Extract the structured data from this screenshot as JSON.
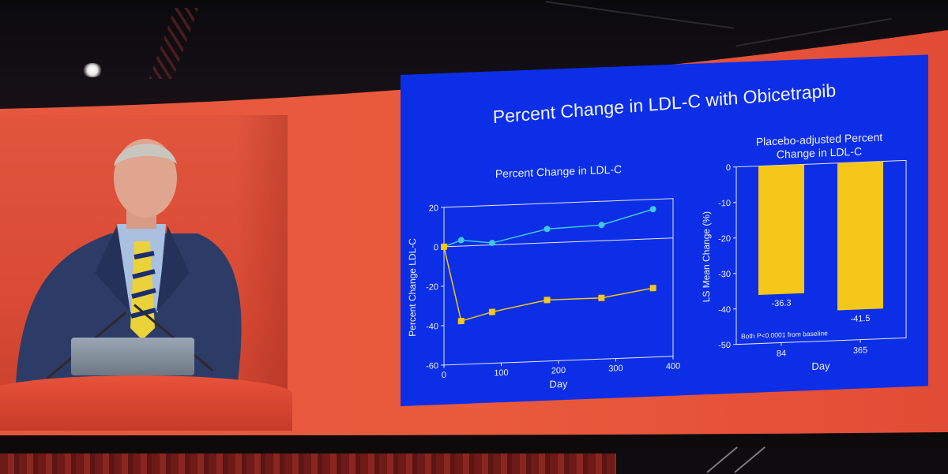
{
  "slide": {
    "title": "Percent Change in LDL-C with Obicetrapib",
    "left_panel_title": "Percent Change in LDL-C",
    "right_panel_title_line1": "Placebo-adjusted Percent",
    "right_panel_title_line2": "Change in LDL-C"
  },
  "colors": {
    "slide_bg": "#0b2ee6",
    "screen_red": "#e2553c",
    "line_series_a": "#3cc8e6",
    "line_series_b": "#f5c71a",
    "bar_fill": "#f5c71a"
  },
  "chart_data": [
    {
      "type": "line",
      "title": "Percent Change in LDL-C",
      "xlabel": "Day",
      "ylabel": "Percent Change LDL-C",
      "xlim": [
        0,
        400
      ],
      "ylim": [
        -60,
        20
      ],
      "x_ticks": [
        "0",
        "100",
        "200",
        "300",
        "400"
      ],
      "y_ticks": [
        "20",
        "0",
        "-20",
        "-40",
        "-60"
      ],
      "series": [
        {
          "x": [
            0,
            30,
            84,
            180,
            275,
            365
          ],
          "y": [
            0,
            3,
            1,
            7,
            8,
            15
          ],
          "color": "#3cc8e6",
          "marker": "circle"
        },
        {
          "x": [
            0,
            30,
            84,
            180,
            275,
            365
          ],
          "y": [
            0,
            -38,
            -34,
            -29,
            -29,
            -25
          ],
          "color": "#f5c71a",
          "marker": "square"
        }
      ]
    },
    {
      "type": "bar",
      "title": "Placebo-adjusted Percent Change in LDL-C",
      "xlabel": "Day",
      "ylabel": "LS Mean Change (%)",
      "ylim": [
        -50,
        0
      ],
      "y_ticks": [
        "0",
        "-10",
        "-20",
        "-30",
        "-40",
        "-50"
      ],
      "categories": [
        "84",
        "365"
      ],
      "values": [
        -36.3,
        -41.5
      ],
      "data_labels": [
        "-36.3",
        "-41.5"
      ],
      "annotation": "Both P<0.0001 from baseline"
    }
  ]
}
